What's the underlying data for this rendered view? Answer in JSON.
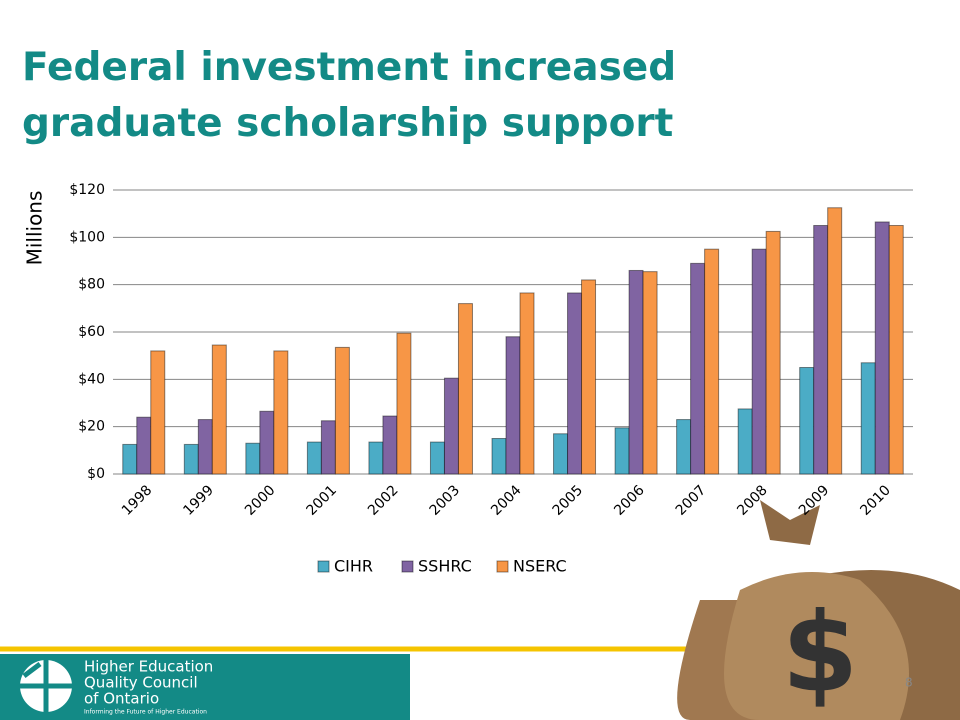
{
  "chart_data": {
    "type": "bar",
    "title": "Federal investment increased graduate scholarship support",
    "y_label": "Millions",
    "categories": [
      "1998",
      "1999",
      "2000",
      "2001",
      "2002",
      "2003",
      "2004",
      "2005",
      "2006",
      "2007",
      "2008",
      "2009",
      "2010"
    ],
    "series": [
      {
        "name": "CIHR",
        "color": "#4bacc6",
        "values": [
          12.5,
          12.5,
          13,
          13.5,
          13.5,
          13.5,
          15,
          17,
          19.5,
          23,
          27.5,
          45,
          47
        ]
      },
      {
        "name": "SSHRC",
        "color": "#8064a2",
        "values": [
          24,
          23,
          26.5,
          22.5,
          24.5,
          40.5,
          58,
          76.5,
          86,
          89,
          95,
          105,
          106.5
        ]
      },
      {
        "name": "NSERC",
        "color": "#f79646",
        "values": [
          52,
          54.5,
          52,
          53.5,
          59.5,
          72,
          76.5,
          82,
          85.5,
          95,
          102.5,
          112.5,
          105
        ]
      }
    ],
    "ylim": [
      0,
      120
    ],
    "yticks": [
      {
        "value": 0,
        "label": "$0"
      },
      {
        "value": 20,
        "label": "$20"
      },
      {
        "value": 40,
        "label": "$40"
      },
      {
        "value": 60,
        "label": "$60"
      },
      {
        "value": 80,
        "label": "$80"
      },
      {
        "value": 100,
        "label": "$100"
      },
      {
        "value": 120,
        "label": "$120"
      }
    ],
    "grid": true,
    "legend": "bottom"
  },
  "footer": {
    "org_lines": [
      "Higher Education",
      "Quality Council",
      "of Ontario"
    ],
    "tagline": "Informing the Future of Higher Education",
    "page_number": "8"
  }
}
